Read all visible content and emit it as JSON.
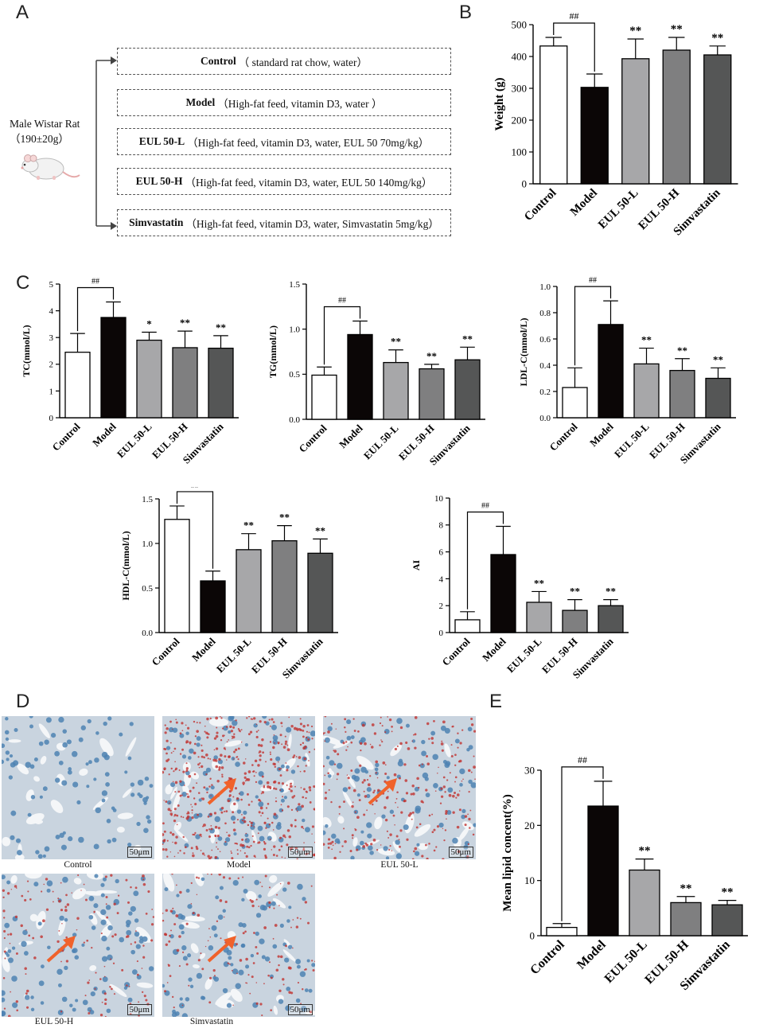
{
  "panels": {
    "a": "A",
    "b": "B",
    "c": "C",
    "d": "D",
    "e": "E"
  },
  "rat": {
    "line1": "Male Wistar Rat",
    "line2": "（190±20g）"
  },
  "groups": [
    {
      "name": "Control",
      "desc": "（ standard rat chow, water）"
    },
    {
      "name": "Model",
      "desc": "（High-fat feed, vitamin D3, water ）"
    },
    {
      "name": "EUL 50-L",
      "desc": "（High-fat feed, vitamin D3, water, EUL 50 70mg/kg）"
    },
    {
      "name": "EUL 50-H",
      "desc": "（High-fat feed, vitamin D3, water, EUL 50 140mg/kg）"
    },
    {
      "name": "Simvastatin",
      "desc": "（High-fat feed, vitamin D3, water, Simvastatin 5mg/kg）"
    }
  ],
  "colors": {
    "control": "#ffffff",
    "model": "#0b0606",
    "eul_l": "#a7a7a9",
    "eul_h": "#7f7f80",
    "simva": "#555656"
  },
  "chart_data": [
    {
      "id": "B",
      "type": "bar",
      "categories": [
        "Control",
        "Model",
        "EUL 50-L",
        "EUL 50-H",
        "Simvastatin"
      ],
      "values": [
        433,
        303,
        393,
        420,
        405
      ],
      "errors": [
        27,
        42,
        62,
        40,
        28
      ],
      "ylabel": "Weight (g)",
      "ylim": [
        0,
        500
      ],
      "yticks": [
        0,
        100,
        200,
        300,
        400,
        500
      ],
      "tickfmt": "0",
      "sig": [
        "",
        "",
        "**",
        "**",
        "**"
      ],
      "bracket": "##",
      "grid": false
    },
    {
      "id": "TC",
      "type": "bar",
      "categories": [
        "Control",
        "Model",
        "EUL 50-L",
        "EUL 50-H",
        "Simvastatin"
      ],
      "values": [
        2.45,
        3.75,
        2.9,
        2.62,
        2.6
      ],
      "errors": [
        0.7,
        0.58,
        0.3,
        0.62,
        0.47
      ],
      "ylabel": "TC(mmol/L)",
      "ylim": [
        0,
        5
      ],
      "yticks": [
        0,
        1,
        2,
        3,
        4,
        5
      ],
      "tickfmt": "0",
      "sig": [
        "",
        "",
        "*",
        "**",
        "**"
      ],
      "bracket": "##",
      "grid": false
    },
    {
      "id": "TG",
      "type": "bar",
      "categories": [
        "Control",
        "Model",
        "EUL 50-L",
        "EUL 50-H",
        "Simvastatin"
      ],
      "values": [
        0.49,
        0.94,
        0.63,
        0.56,
        0.66
      ],
      "errors": [
        0.09,
        0.15,
        0.14,
        0.05,
        0.14
      ],
      "ylabel": "TG(mmol/L)",
      "ylim": [
        0,
        1.5
      ],
      "yticks": [
        0,
        0.5,
        1.0,
        1.5
      ],
      "tickfmt": "1",
      "sig": [
        "",
        "",
        "**",
        "**",
        "**"
      ],
      "bracket": "##",
      "grid": false
    },
    {
      "id": "LDL",
      "type": "bar",
      "categories": [
        "Control",
        "Model",
        "EUL 50-L",
        "EUL 50-H",
        "Simvastatin"
      ],
      "values": [
        0.23,
        0.71,
        0.41,
        0.36,
        0.3
      ],
      "errors": [
        0.15,
        0.18,
        0.12,
        0.09,
        0.08
      ],
      "ylabel": "LDL-C(mmol/L)",
      "ylim": [
        0,
        1.0
      ],
      "yticks": [
        0,
        0.2,
        0.4,
        0.6,
        0.8,
        1.0
      ],
      "tickfmt": "1",
      "sig": [
        "",
        "",
        "**",
        "**",
        "**"
      ],
      "bracket": "##",
      "grid": false
    },
    {
      "id": "HDL",
      "type": "bar",
      "categories": [
        "Control",
        "Model",
        "EUL 50-L",
        "EUL 50-H",
        "Simvastatin"
      ],
      "values": [
        1.27,
        0.58,
        0.93,
        1.03,
        0.89
      ],
      "errors": [
        0.15,
        0.11,
        0.18,
        0.17,
        0.16
      ],
      "ylabel": "HDL-C(mmol/L)",
      "ylim": [
        0,
        1.5
      ],
      "yticks": [
        0,
        0.5,
        1.0,
        1.5
      ],
      "tickfmt": "1",
      "sig": [
        "",
        "",
        "**",
        "**",
        "**"
      ],
      "bracket": "##",
      "grid": false
    },
    {
      "id": "AI",
      "type": "bar",
      "categories": [
        "Control",
        "Model",
        "EUL 50-L",
        "EUL 50-H",
        "Simvastatin"
      ],
      "values": [
        0.95,
        5.8,
        2.25,
        1.65,
        2.0
      ],
      "errors": [
        0.6,
        2.1,
        0.8,
        0.8,
        0.45
      ],
      "ylabel": "AI",
      "ylim": [
        0,
        10
      ],
      "yticks": [
        0,
        2,
        4,
        6,
        8,
        10
      ],
      "tickfmt": "0",
      "sig": [
        "",
        "",
        "**",
        "**",
        "**"
      ],
      "bracket": "##",
      "grid": false
    },
    {
      "id": "E",
      "type": "bar",
      "categories": [
        "Control",
        "Model",
        "EUL 50-L",
        "EUL 50-H",
        "Simvastatin"
      ],
      "values": [
        1.5,
        23.5,
        11.9,
        6.0,
        5.6
      ],
      "errors": [
        0.7,
        4.5,
        2.0,
        1.1,
        0.8
      ],
      "ylabel": "Mean lipid concent(%)",
      "ylim": [
        0,
        30
      ],
      "yticks": [
        0,
        10,
        20,
        30
      ],
      "tickfmt": "0",
      "sig": [
        "",
        "",
        "**",
        "**",
        "**"
      ],
      "bracket": "##",
      "grid": false
    }
  ],
  "micrographs": [
    {
      "label": "Control",
      "scale": "50μm",
      "stain": "none"
    },
    {
      "label": "Model",
      "scale": "50μm",
      "stain": "heavy"
    },
    {
      "label": "EUL 50-L",
      "scale": "50μm",
      "stain": "moderate"
    },
    {
      "label": "EUL 50-H",
      "scale": "50μm",
      "stain": "light"
    },
    {
      "label": "Simvastatin",
      "scale": "50μm",
      "stain": "light"
    }
  ]
}
